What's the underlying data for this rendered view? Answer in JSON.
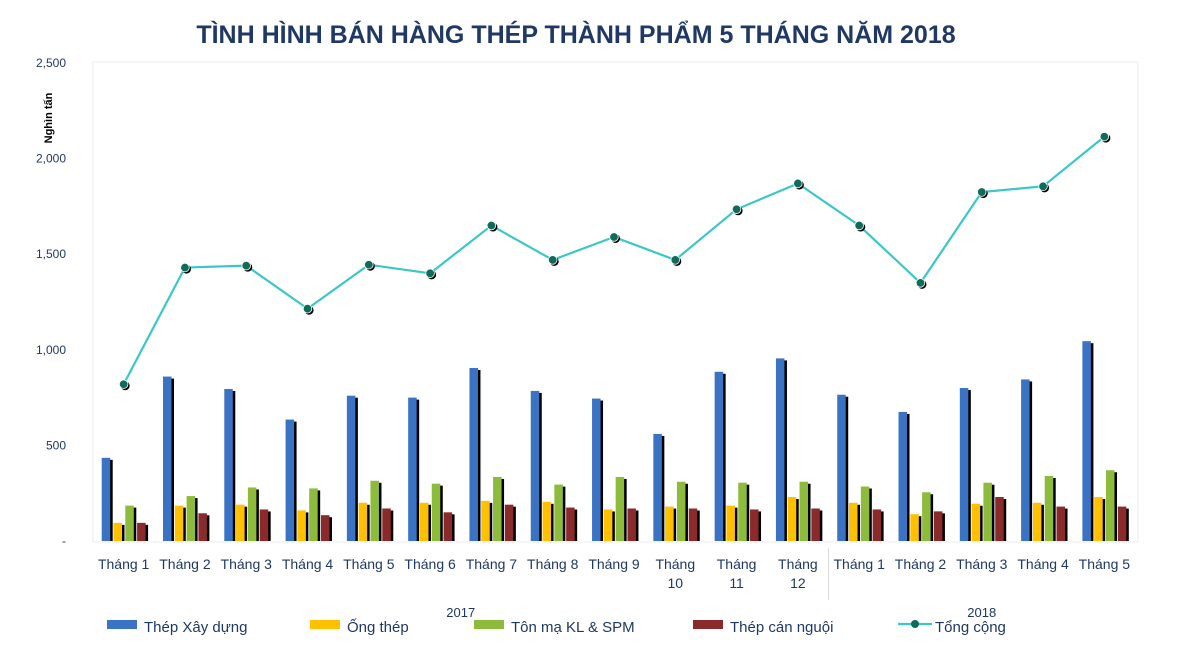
{
  "chart_data": {
    "type": "bar",
    "title": "TÌNH HÌNH BÁN HÀNG THÉP THÀNH PHẨM 5 THÁNG NĂM 2018",
    "ylabel": "Nghìn tấn",
    "xlabel": "",
    "ylim": [
      0,
      2500
    ],
    "yticks": [
      "-",
      "500",
      "1,000",
      "1,500",
      "2,000",
      "2,500"
    ],
    "ytick_values": [
      0,
      500,
      1000,
      1500,
      2000,
      2500
    ],
    "grid": false,
    "legend_position": "bottom",
    "categories": [
      "Tháng 1",
      "Tháng 2",
      "Tháng 3",
      "Tháng 4",
      "Tháng 5",
      "Tháng 6",
      "Tháng 7",
      "Tháng 8",
      "Tháng 9",
      "Tháng 10",
      "Tháng 11",
      "Tháng 12",
      "Tháng 1",
      "Tháng 2",
      "Tháng 3",
      "Tháng 4",
      "Tháng 5"
    ],
    "groups": [
      {
        "label": "2017",
        "start": 0,
        "end": 11
      },
      {
        "label": "2018",
        "start": 12,
        "end": 16
      }
    ],
    "series": [
      {
        "name": "Thép Xây dựng",
        "type": "bar",
        "color": "#3a72c4",
        "values": [
          435,
          860,
          795,
          635,
          760,
          750,
          905,
          785,
          745,
          560,
          885,
          955,
          765,
          675,
          800,
          845,
          1045
        ]
      },
      {
        "name": "Ống thép",
        "type": "bar",
        "color": "#ffc000",
        "values": [
          95,
          185,
          190,
          160,
          200,
          200,
          210,
          205,
          165,
          180,
          185,
          230,
          200,
          140,
          195,
          200,
          230
        ]
      },
      {
        "name": "Tôn mạ KL & SPM",
        "type": "bar",
        "color": "#8dbb3c",
        "values": [
          185,
          235,
          280,
          275,
          315,
          300,
          335,
          295,
          335,
          310,
          305,
          310,
          285,
          255,
          305,
          340,
          370
        ]
      },
      {
        "name": "Thép cán nguội",
        "type": "bar",
        "color": "#8b2a2a",
        "values": [
          95,
          145,
          165,
          135,
          170,
          150,
          190,
          175,
          170,
          170,
          165,
          170,
          165,
          155,
          230,
          180,
          180
        ]
      },
      {
        "name": "Tổng cộng",
        "type": "line",
        "color": "#3cc7c7",
        "marker_color": "#0f6b5a",
        "values": [
          820,
          1430,
          1440,
          1215,
          1445,
          1400,
          1650,
          1470,
          1590,
          1470,
          1735,
          1870,
          1650,
          1350,
          1825,
          1855,
          2115
        ]
      }
    ]
  }
}
